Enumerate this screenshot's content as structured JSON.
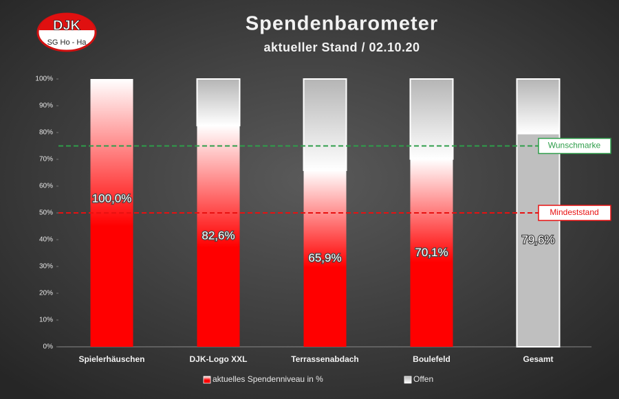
{
  "chart_data": {
    "type": "stacked_bar",
    "title": "Spendenbarometer",
    "subtitle": "aktueller Stand / 02.10.20",
    "logo": {
      "top": "DJK",
      "bottom": "SG Ho - Ha"
    },
    "categories": [
      "Spielerhäuschen",
      "DJK-Logo XXL",
      "Terrassenabdach",
      "Boulefeld",
      "Gesamt"
    ],
    "series": [
      {
        "name": "aktuelles Spendenniveau in %",
        "color": "#ff0000",
        "colors": [
          "#ff0000",
          "#ff0000",
          "#ff0000",
          "#ff0000",
          "#bfbfbf"
        ],
        "values": [
          100,
          82.6,
          65.9,
          70.1,
          79.6
        ],
        "value_labels": [
          "100,0%",
          "82,6%",
          "65,9%",
          "70,1%",
          "79,6%"
        ]
      },
      {
        "name": "Offen",
        "color": "#ffffff",
        "values": [
          0,
          17.4,
          34.1,
          29.9,
          20.4
        ]
      }
    ],
    "ylim": [
      0,
      100
    ],
    "yticks": [
      {
        "value": 0,
        "label": "0%"
      },
      {
        "value": 10,
        "label": "10%"
      },
      {
        "value": 20,
        "label": "20%"
      },
      {
        "value": 30,
        "label": "30%"
      },
      {
        "value": 40,
        "label": "40%"
      },
      {
        "value": 50,
        "label": "50%"
      },
      {
        "value": 60,
        "label": "60%"
      },
      {
        "value": 70,
        "label": "70%"
      },
      {
        "value": 80,
        "label": "80%"
      },
      {
        "value": 90,
        "label": "90%"
      },
      {
        "value": 100,
        "label": "100%"
      }
    ],
    "reference_lines": [
      {
        "label": "Wunschmarke",
        "value": 75,
        "color": "#2e9e4a"
      },
      {
        "label": "Mindeststand",
        "value": 50,
        "color": "#e81010"
      }
    ],
    "legend": "bottom"
  }
}
